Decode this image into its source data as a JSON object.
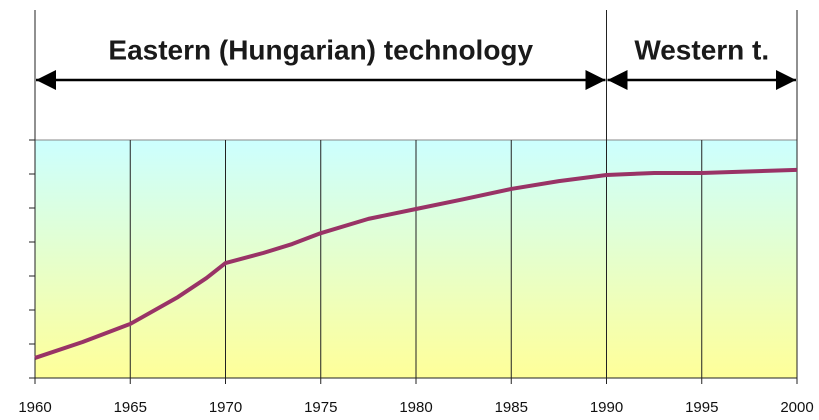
{
  "chart_data": {
    "type": "line",
    "x": [
      1960,
      1962.5,
      1965,
      1967.5,
      1969,
      1970,
      1972,
      1973.5,
      1975,
      1977.5,
      1980,
      1982.5,
      1985,
      1987.5,
      1990,
      1992.5,
      1995,
      2000
    ],
    "series": [
      {
        "color": "#993366",
        "values": [
          0.59,
          1.06,
          1.59,
          2.38,
          2.94,
          3.38,
          3.68,
          3.94,
          4.26,
          4.68,
          4.97,
          5.26,
          5.56,
          5.79,
          5.97,
          6.03,
          6.03,
          6.12
        ]
      }
    ],
    "xlim": [
      1960,
      2000
    ],
    "xticks": [
      1960,
      1965,
      1970,
      1975,
      1980,
      1985,
      1990,
      1995,
      2000
    ],
    "ylim": [
      0,
      7
    ],
    "yticks": [
      0,
      1,
      2,
      3,
      4,
      5,
      6,
      7
    ],
    "grid": true,
    "annotations": [
      {
        "text": "Eastern (Hungarian) technology",
        "from": 1960,
        "to": 1990
      },
      {
        "text": "Western t.",
        "from": 1990,
        "to": 2000
      }
    ]
  }
}
